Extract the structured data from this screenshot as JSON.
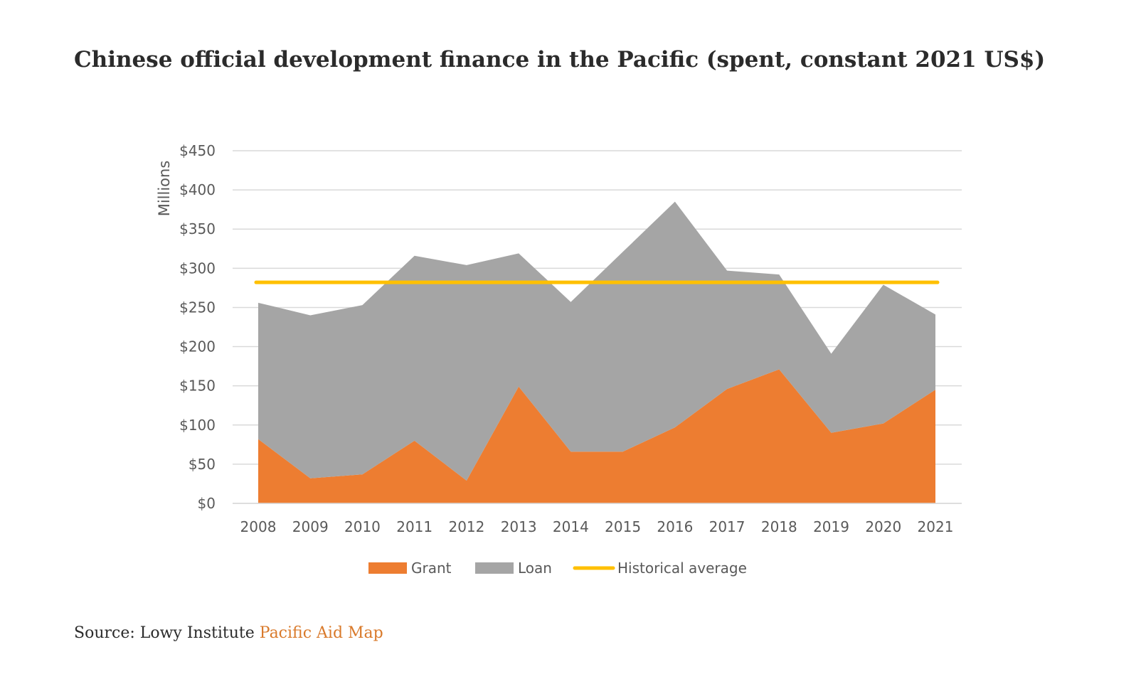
{
  "title": "Chinese official development finance in the Pacific (spent, constant 2021 US$)",
  "source": {
    "prefix": "Source: Lowy Institute ",
    "link_text": "Pacific Aid Map",
    "link_color": "#d97a2b"
  },
  "chart_data": {
    "type": "area",
    "stacked": true,
    "x": [
      "2008",
      "2009",
      "2010",
      "2011",
      "2012",
      "2013",
      "2014",
      "2015",
      "2016",
      "2017",
      "2018",
      "2019",
      "2020",
      "2021"
    ],
    "series": [
      {
        "name": "Grant",
        "color": "#ED7D31",
        "values": [
          82,
          32,
          37,
          80,
          29,
          149,
          66,
          66,
          97,
          146,
          171,
          90,
          102,
          145
        ]
      },
      {
        "name": "Loan",
        "color": "#A5A5A5",
        "values": [
          174,
          208,
          216,
          236,
          275,
          170,
          191,
          255,
          288,
          151,
          121,
          101,
          177,
          96
        ]
      }
    ],
    "reference_line": {
      "name": "Historical average",
      "value": 282,
      "color": "#FFC000"
    },
    "ylabel": "Millions",
    "xlabel": "",
    "ylim": [
      0,
      450
    ],
    "yticks": [
      0,
      50,
      100,
      150,
      200,
      250,
      300,
      350,
      400,
      450
    ],
    "ytick_labels": [
      "$0",
      "$50",
      "$100",
      "$150",
      "$200",
      "$250",
      "$300",
      "$350",
      "$400",
      "$450"
    ],
    "grid": true,
    "legend_position": "bottom"
  }
}
